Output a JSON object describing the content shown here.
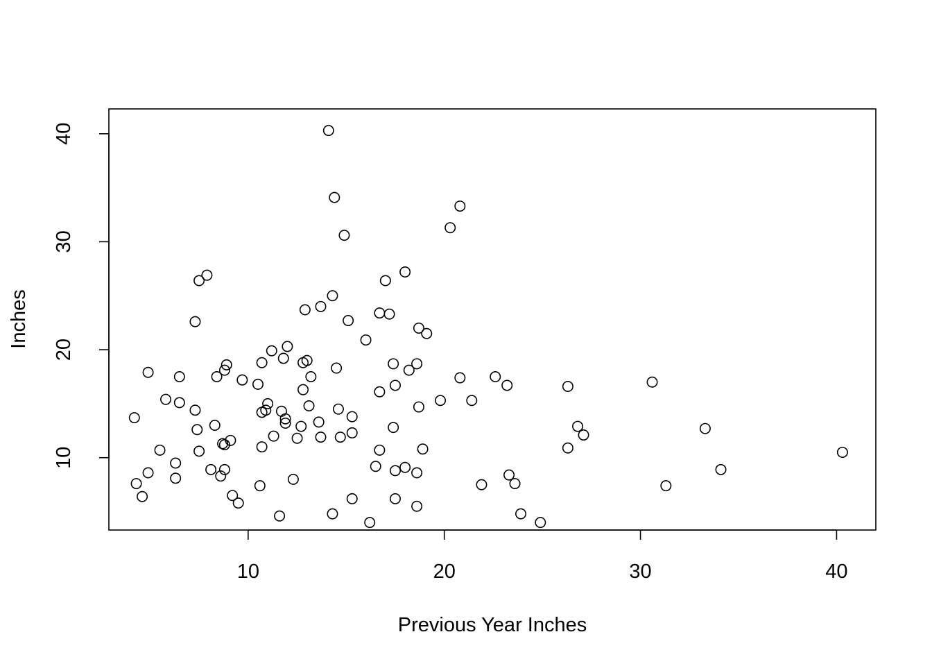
{
  "chart_data": {
    "type": "scatter",
    "title": "",
    "xlabel": "Previous Year Inches",
    "ylabel": "Inches",
    "xlim": [
      2.9,
      42.0
    ],
    "ylim": [
      3.3,
      42.3
    ],
    "xticks": [
      10,
      20,
      30,
      40
    ],
    "yticks": [
      10,
      20,
      30,
      40
    ],
    "xtick_labels": [
      "10",
      "20",
      "30",
      "40"
    ],
    "ytick_labels": [
      "10",
      "20",
      "30",
      "40"
    ],
    "grid": false,
    "legend": "none",
    "marker": "open-circle",
    "colors": {
      "marker": "#000000",
      "frame": "#000000",
      "background": "#ffffff"
    },
    "points": [
      {
        "x": 14.1,
        "y": 40.3
      },
      {
        "x": 14.4,
        "y": 34.1
      },
      {
        "x": 20.8,
        "y": 33.3
      },
      {
        "x": 20.3,
        "y": 31.3
      },
      {
        "x": 14.9,
        "y": 30.6
      },
      {
        "x": 18.0,
        "y": 27.2
      },
      {
        "x": 7.9,
        "y": 26.9
      },
      {
        "x": 7.5,
        "y": 26.4
      },
      {
        "x": 17.0,
        "y": 26.4
      },
      {
        "x": 14.3,
        "y": 25.0
      },
      {
        "x": 13.7,
        "y": 24.0
      },
      {
        "x": 12.9,
        "y": 23.7
      },
      {
        "x": 16.7,
        "y": 23.4
      },
      {
        "x": 17.2,
        "y": 23.3
      },
      {
        "x": 15.1,
        "y": 22.7
      },
      {
        "x": 7.3,
        "y": 22.6
      },
      {
        "x": 18.7,
        "y": 22.0
      },
      {
        "x": 19.1,
        "y": 21.5
      },
      {
        "x": 16.0,
        "y": 20.9
      },
      {
        "x": 12.0,
        "y": 20.3
      },
      {
        "x": 11.2,
        "y": 19.9
      },
      {
        "x": 11.8,
        "y": 19.2
      },
      {
        "x": 13.0,
        "y": 19.0
      },
      {
        "x": 12.8,
        "y": 18.8
      },
      {
        "x": 10.7,
        "y": 18.8
      },
      {
        "x": 17.4,
        "y": 18.7
      },
      {
        "x": 18.6,
        "y": 18.7
      },
      {
        "x": 8.9,
        "y": 18.6
      },
      {
        "x": 14.5,
        "y": 18.3
      },
      {
        "x": 8.8,
        "y": 18.1
      },
      {
        "x": 18.2,
        "y": 18.1
      },
      {
        "x": 4.9,
        "y": 17.9
      },
      {
        "x": 8.4,
        "y": 17.5
      },
      {
        "x": 6.5,
        "y": 17.5
      },
      {
        "x": 13.2,
        "y": 17.5
      },
      {
        "x": 20.8,
        "y": 17.4
      },
      {
        "x": 22.6,
        "y": 17.5
      },
      {
        "x": 9.7,
        "y": 17.2
      },
      {
        "x": 30.6,
        "y": 17.0
      },
      {
        "x": 10.5,
        "y": 16.8
      },
      {
        "x": 17.5,
        "y": 16.7
      },
      {
        "x": 23.2,
        "y": 16.7
      },
      {
        "x": 26.3,
        "y": 16.6
      },
      {
        "x": 12.8,
        "y": 16.3
      },
      {
        "x": 16.7,
        "y": 16.1
      },
      {
        "x": 5.8,
        "y": 15.4
      },
      {
        "x": 21.4,
        "y": 15.3
      },
      {
        "x": 19.8,
        "y": 15.3
      },
      {
        "x": 6.5,
        "y": 15.1
      },
      {
        "x": 11.0,
        "y": 15.0
      },
      {
        "x": 13.1,
        "y": 14.8
      },
      {
        "x": 18.7,
        "y": 14.7
      },
      {
        "x": 14.6,
        "y": 14.5
      },
      {
        "x": 10.9,
        "y": 14.4
      },
      {
        "x": 7.3,
        "y": 14.4
      },
      {
        "x": 11.7,
        "y": 14.3
      },
      {
        "x": 10.7,
        "y": 14.2
      },
      {
        "x": 15.3,
        "y": 13.8
      },
      {
        "x": 4.2,
        "y": 13.7
      },
      {
        "x": 11.9,
        "y": 13.6
      },
      {
        "x": 13.6,
        "y": 13.3
      },
      {
        "x": 11.9,
        "y": 13.2
      },
      {
        "x": 8.3,
        "y": 13.0
      },
      {
        "x": 26.8,
        "y": 12.9
      },
      {
        "x": 12.7,
        "y": 12.9
      },
      {
        "x": 17.4,
        "y": 12.8
      },
      {
        "x": 33.3,
        "y": 12.7
      },
      {
        "x": 7.4,
        "y": 12.6
      },
      {
        "x": 15.3,
        "y": 12.3
      },
      {
        "x": 27.1,
        "y": 12.1
      },
      {
        "x": 11.3,
        "y": 12.0
      },
      {
        "x": 14.7,
        "y": 11.9
      },
      {
        "x": 13.7,
        "y": 11.9
      },
      {
        "x": 12.5,
        "y": 11.8
      },
      {
        "x": 9.1,
        "y": 11.6
      },
      {
        "x": 8.7,
        "y": 11.3
      },
      {
        "x": 8.8,
        "y": 11.2
      },
      {
        "x": 10.7,
        "y": 11.0
      },
      {
        "x": 26.3,
        "y": 10.9
      },
      {
        "x": 18.9,
        "y": 10.8
      },
      {
        "x": 16.7,
        "y": 10.7
      },
      {
        "x": 5.5,
        "y": 10.7
      },
      {
        "x": 7.5,
        "y": 10.6
      },
      {
        "x": 40.3,
        "y": 10.5
      },
      {
        "x": 6.3,
        "y": 9.5
      },
      {
        "x": 16.5,
        "y": 9.2
      },
      {
        "x": 18.0,
        "y": 9.1
      },
      {
        "x": 8.1,
        "y": 8.9
      },
      {
        "x": 8.8,
        "y": 8.9
      },
      {
        "x": 34.1,
        "y": 8.9
      },
      {
        "x": 17.5,
        "y": 8.8
      },
      {
        "x": 4.9,
        "y": 8.6
      },
      {
        "x": 18.6,
        "y": 8.6
      },
      {
        "x": 23.3,
        "y": 8.4
      },
      {
        "x": 8.6,
        "y": 8.3
      },
      {
        "x": 6.3,
        "y": 8.1
      },
      {
        "x": 12.3,
        "y": 8.0
      },
      {
        "x": 4.3,
        "y": 7.6
      },
      {
        "x": 23.6,
        "y": 7.6
      },
      {
        "x": 21.9,
        "y": 7.5
      },
      {
        "x": 31.3,
        "y": 7.4
      },
      {
        "x": 10.6,
        "y": 7.4
      },
      {
        "x": 9.2,
        "y": 6.5
      },
      {
        "x": 4.6,
        "y": 6.4
      },
      {
        "x": 15.3,
        "y": 6.2
      },
      {
        "x": 17.5,
        "y": 6.2
      },
      {
        "x": 9.5,
        "y": 5.8
      },
      {
        "x": 18.6,
        "y": 5.5
      },
      {
        "x": 14.3,
        "y": 4.8
      },
      {
        "x": 23.9,
        "y": 4.8
      },
      {
        "x": 11.6,
        "y": 4.6
      },
      {
        "x": 16.2,
        "y": 4.0
      },
      {
        "x": 24.9,
        "y": 4.0
      }
    ]
  }
}
